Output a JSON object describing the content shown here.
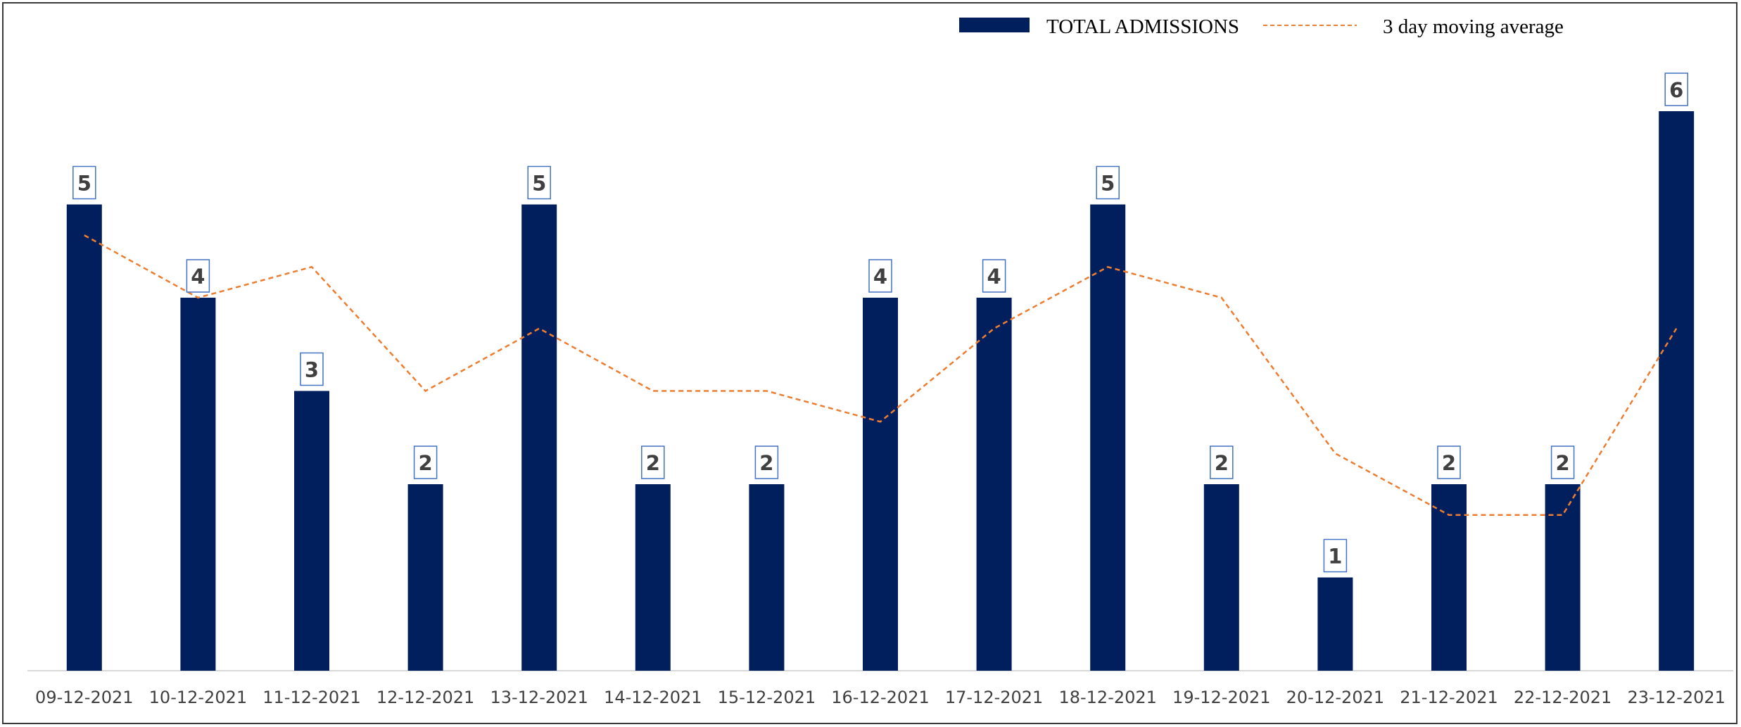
{
  "chart_data": {
    "type": "bar",
    "categories": [
      "09-12-2021",
      "10-12-2021",
      "11-12-2021",
      "12-12-2021",
      "13-12-2021",
      "14-12-2021",
      "15-12-2021",
      "16-12-2021",
      "17-12-2021",
      "18-12-2021",
      "19-12-2021",
      "20-12-2021",
      "21-12-2021",
      "22-12-2021",
      "23-12-2021"
    ],
    "series": [
      {
        "name": "TOTAL ADMISSIONS",
        "type": "bar",
        "color": "#001f5c",
        "values": [
          5,
          4,
          3,
          2,
          5,
          2,
          2,
          4,
          4,
          5,
          2,
          1,
          2,
          2,
          6
        ],
        "labels": [
          "5",
          "4",
          "3",
          "2",
          "5",
          "2",
          "2",
          "4",
          "4",
          "5",
          "2",
          "1",
          "2",
          "2",
          "6"
        ]
      },
      {
        "name": "3 day moving average",
        "type": "line",
        "style": "dashed",
        "color": "#ed7d31",
        "values": [
          4.67,
          4.0,
          4.33,
          3.0,
          3.67,
          3.0,
          3.0,
          2.67,
          3.67,
          4.33,
          4.0,
          2.33,
          1.67,
          1.67,
          3.67
        ]
      }
    ],
    "ylim": [
      0,
      6.5
    ],
    "grid": false,
    "legend": "top-right",
    "data_labels": true
  }
}
